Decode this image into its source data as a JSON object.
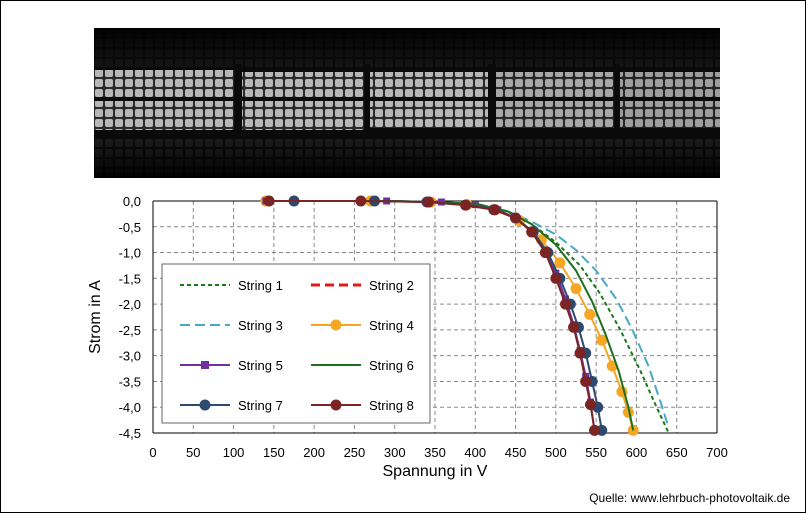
{
  "source": "Quelle: www.lehrbuch-photovoltaik.de",
  "el_image": {
    "description_icon": "electroluminescence-module-image"
  },
  "chart_data": {
    "type": "line",
    "xlabel": "Spannung in V",
    "ylabel": "Strom in A",
    "xlim": [
      0,
      700
    ],
    "ylim": [
      -4.5,
      0
    ],
    "xticks": [
      0,
      50,
      100,
      150,
      200,
      250,
      300,
      350,
      400,
      450,
      500,
      550,
      600,
      650,
      700
    ],
    "xtick_labels": [
      "0",
      "50",
      "100",
      "150",
      "200",
      "250",
      "300",
      "350",
      "400",
      "450",
      "500",
      "550",
      "600",
      "650",
      "700"
    ],
    "yticks": [
      0,
      -0.5,
      -1,
      -1.5,
      -2,
      -2.5,
      -3,
      -3.5,
      -4,
      -4.5
    ],
    "ytick_labels": [
      "0,0",
      "-0,5",
      "-1,0",
      "-1,5",
      "-2,0",
      "-2,5",
      "-3,0",
      "-3,5",
      "-4,0",
      "-4,5"
    ],
    "grid": true,
    "legend_position": "inside-left",
    "series": [
      {
        "name": "String 1",
        "color": "#1a7a1a",
        "dash": "4,3",
        "marker": "none",
        "width": 2,
        "x": [
          140,
          300,
          400,
          440,
          470,
          500,
          530,
          555,
          580,
          605,
          625,
          640
        ],
        "y": [
          0,
          0,
          -0.05,
          -0.2,
          -0.45,
          -0.8,
          -1.25,
          -1.8,
          -2.5,
          -3.3,
          -4.0,
          -4.5
        ]
      },
      {
        "name": "String 2",
        "color": "#e31a1a",
        "dash": "9,5",
        "marker": "none",
        "width": 3,
        "x": [],
        "y": []
      },
      {
        "name": "String 3",
        "color": "#46a9c4",
        "dash": "10,5",
        "marker": "none",
        "width": 2,
        "x": [
          140,
          300,
          400,
          440,
          470,
          500,
          525,
          550,
          575,
          595,
          615,
          630,
          640
        ],
        "y": [
          0,
          0,
          -0.05,
          -0.2,
          -0.4,
          -0.65,
          -0.95,
          -1.35,
          -1.9,
          -2.5,
          -3.2,
          -3.9,
          -4.4
        ]
      },
      {
        "name": "String 4",
        "color": "#f5a623",
        "dash": "",
        "marker": "circle",
        "width": 2,
        "x": [
          140,
          270,
          345,
          390,
          425,
          455,
          482,
          505,
          525,
          542,
          557,
          570,
          582,
          590,
          596
        ],
        "y": [
          0,
          0,
          -0.02,
          -0.07,
          -0.17,
          -0.38,
          -0.75,
          -1.2,
          -1.7,
          -2.2,
          -2.7,
          -3.2,
          -3.7,
          -4.1,
          -4.45
        ]
      },
      {
        "name": "String 5",
        "color": "#7030a0",
        "dash": "",
        "marker": "square",
        "width": 2,
        "x": [
          140,
          290,
          358,
          400,
          428,
          450,
          470,
          487,
          500,
          512,
          522,
          530,
          537,
          543,
          548
        ],
        "y": [
          0,
          0,
          -0.02,
          -0.07,
          -0.17,
          -0.33,
          -0.6,
          -0.95,
          -1.4,
          -1.9,
          -2.4,
          -2.9,
          -3.4,
          -3.9,
          -4.45
        ]
      },
      {
        "name": "String 6",
        "color": "#1f6e1f",
        "dash": "",
        "marker": "none",
        "width": 2,
        "x": [
          140,
          300,
          400,
          440,
          470,
          500,
          525,
          545,
          562,
          578,
          590,
          596
        ],
        "y": [
          0,
          0,
          -0.05,
          -0.2,
          -0.45,
          -0.85,
          -1.35,
          -1.95,
          -2.6,
          -3.3,
          -4.0,
          -4.45
        ]
      },
      {
        "name": "String 7",
        "color": "#2d4a6e",
        "dash": "",
        "marker": "circle",
        "width": 2,
        "x": [
          175,
          275,
          340,
          388,
          423,
          450,
          472,
          490,
          505,
          518,
          528,
          537,
          545,
          552,
          557
        ],
        "y": [
          0,
          0,
          -0.02,
          -0.08,
          -0.17,
          -0.33,
          -0.6,
          -1.0,
          -1.5,
          -2.0,
          -2.45,
          -2.95,
          -3.5,
          -4.0,
          -4.45
        ]
      },
      {
        "name": "String 8",
        "color": "#7a2424",
        "dash": "",
        "marker": "circle",
        "width": 2,
        "x": [
          144,
          258,
          342,
          388,
          424,
          450,
          470,
          487,
          500,
          512,
          522,
          530,
          537,
          543,
          548
        ],
        "y": [
          0,
          0,
          -0.02,
          -0.08,
          -0.17,
          -0.33,
          -0.6,
          -1.0,
          -1.5,
          -2.0,
          -2.45,
          -2.95,
          -3.5,
          -3.95,
          -4.45
        ]
      }
    ]
  }
}
